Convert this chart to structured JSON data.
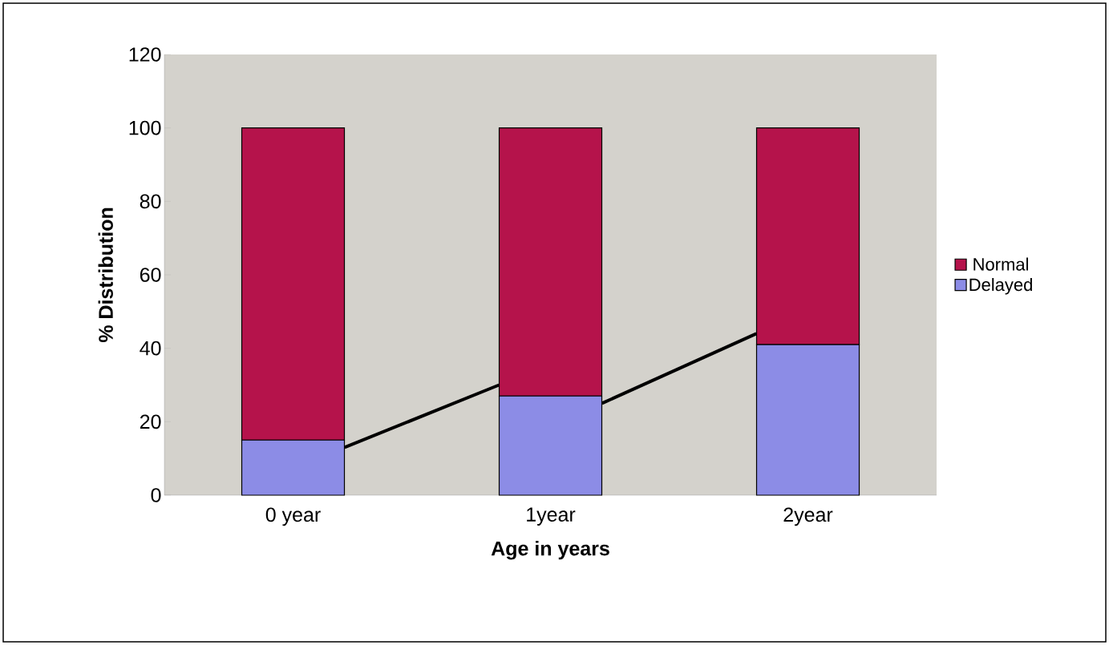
{
  "chart_data": {
    "type": "bar",
    "stacked": true,
    "xlabel": "Age in years",
    "ylabel": "% Distribution",
    "categories": [
      "0 year",
      "1year",
      "2year"
    ],
    "series": [
      {
        "name": "Delayed",
        "color": "#8c8ce6",
        "values": [
          15,
          27,
          41
        ]
      },
      {
        "name": "Normal",
        "color": "#b5134b",
        "values": [
          85,
          73,
          59
        ]
      }
    ],
    "ylim": [
      0,
      120
    ],
    "yticks": [
      0,
      20,
      40,
      60,
      80,
      100,
      120
    ],
    "legend": "right"
  }
}
